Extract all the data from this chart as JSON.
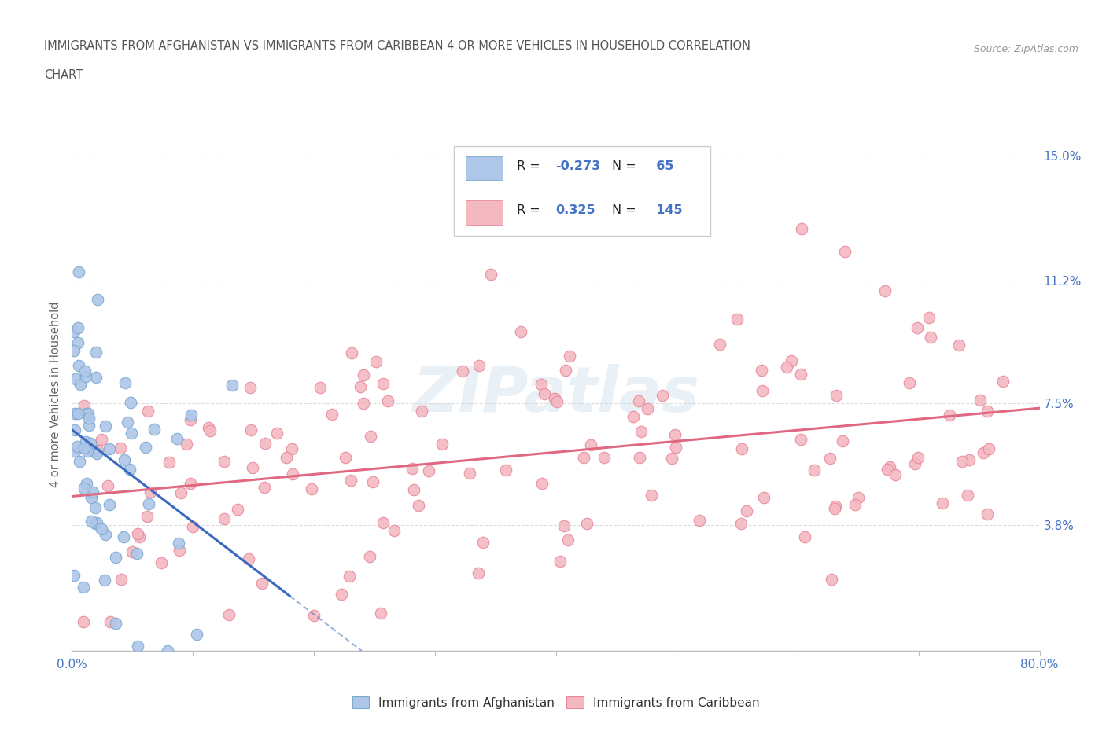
{
  "title_line1": "IMMIGRANTS FROM AFGHANISTAN VS IMMIGRANTS FROM CARIBBEAN 4 OR MORE VEHICLES IN HOUSEHOLD CORRELATION",
  "title_line2": "CHART",
  "source": "Source: ZipAtlas.com",
  "ylabel": "4 or more Vehicles in Household",
  "xlim": [
    0.0,
    0.8
  ],
  "ylim": [
    0.0,
    0.155
  ],
  "yticks_right": [
    0.038,
    0.075,
    0.112,
    0.15
  ],
  "ytick_labels_right": [
    "3.8%",
    "7.5%",
    "11.2%",
    "15.0%"
  ],
  "afghanistan_color": "#aec6e8",
  "caribbean_color": "#f4b8c1",
  "afghanistan_edge_color": "#7aaad0",
  "caribbean_edge_color": "#e8889a",
  "afghanistan_line_color": "#3a6abf",
  "caribbean_line_color": "#e06880",
  "R_afghanistan": -0.273,
  "N_afghanistan": 65,
  "R_caribbean": 0.325,
  "N_caribbean": 145,
  "legend_label_afghanistan": "Immigrants from Afghanistan",
  "legend_label_caribbean": "Immigrants from Caribbean",
  "watermark": "ZIPatlas",
  "background_color": "#ffffff",
  "grid_color": "#dddddd",
  "title_color": "#555555",
  "axis_label_color": "#666666",
  "tick_label_color": "#4472c4",
  "afg_seed": 77,
  "car_seed": 42
}
